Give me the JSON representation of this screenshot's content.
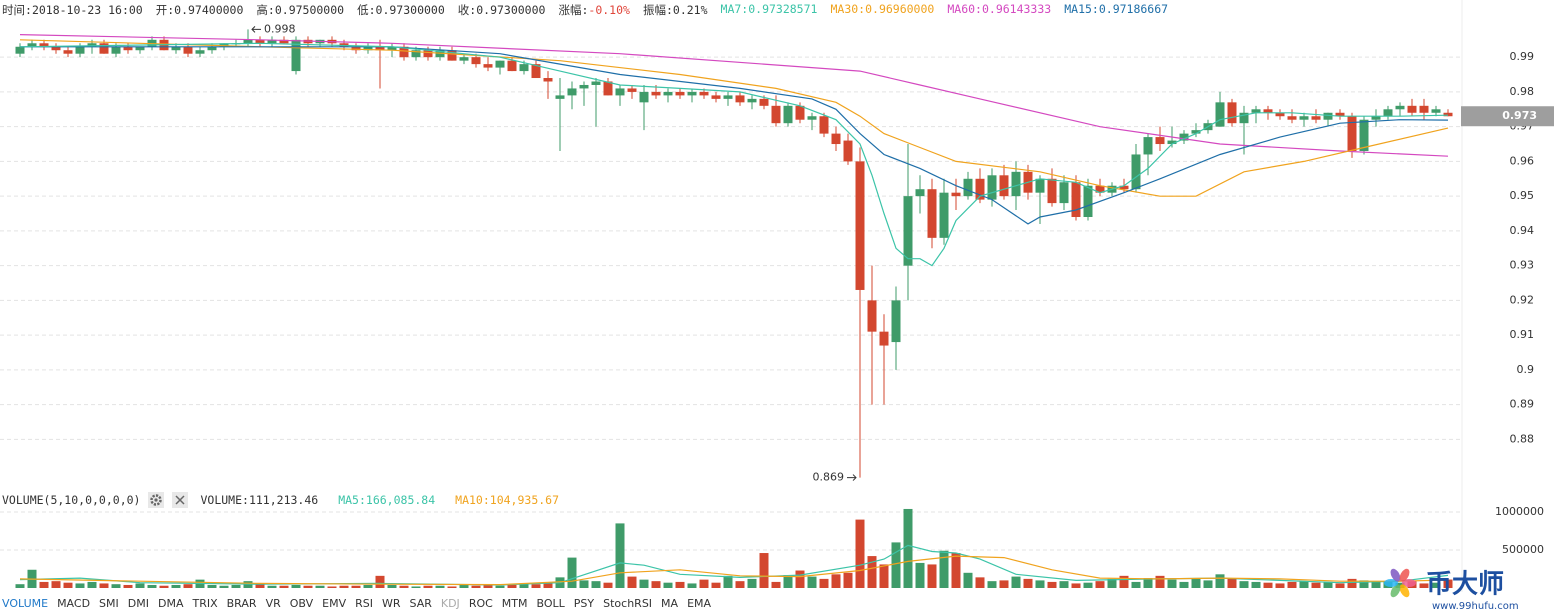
{
  "header": {
    "items": [
      {
        "label": "时间:",
        "value": "2018-10-23 16:00"
      },
      {
        "label": "开:",
        "value": "0.97400000"
      },
      {
        "label": "高:",
        "value": "0.97500000"
      },
      {
        "label": "低:",
        "value": "0.97300000"
      },
      {
        "label": "收:",
        "value": "0.97300000"
      },
      {
        "label": "涨幅:",
        "value": "-0.10%",
        "value_color": "#e0453a"
      },
      {
        "label": "振幅:",
        "value": "0.21%"
      },
      {
        "label": "MA7:",
        "value": "0.97328571",
        "color": "#3cc4a8"
      },
      {
        "label": "MA30:",
        "value": "0.96960000",
        "color": "#f0a31e"
      },
      {
        "label": "MA60:",
        "value": "0.96143333",
        "color": "#d449c0"
      },
      {
        "label": "MA15:",
        "value": "0.97186667",
        "color": "#1f6fa8"
      }
    ]
  },
  "chart_data": [
    {
      "type": "candlestick",
      "up_color": "#3f9b69",
      "down_color": "#d3472f",
      "open": [
        0.991,
        0.993,
        0.994,
        0.993,
        0.992,
        0.991,
        0.993,
        0.994,
        0.991,
        0.993,
        0.992,
        0.993,
        0.995,
        0.992,
        0.993,
        0.991,
        0.992,
        0.993,
        0.994,
        0.994,
        0.995,
        0.994,
        0.995,
        0.986,
        0.995,
        0.994,
        0.995,
        0.994,
        0.993,
        0.992,
        0.993,
        0.992,
        0.993,
        0.99,
        0.992,
        0.99,
        0.992,
        0.989,
        0.99,
        0.988,
        0.987,
        0.989,
        0.986,
        0.988,
        0.984,
        0.978,
        0.979,
        0.981,
        0.982,
        0.983,
        0.979,
        0.981,
        0.977,
        0.98,
        0.979,
        0.98,
        0.979,
        0.98,
        0.979,
        0.978,
        0.979,
        0.977,
        0.978,
        0.976,
        0.971,
        0.976,
        0.972,
        0.973,
        0.968,
        0.966,
        0.96,
        0.92,
        0.911,
        0.908,
        0.93,
        0.95,
        0.952,
        0.938,
        0.951,
        0.95,
        0.955,
        0.949,
        0.956,
        0.95,
        0.957,
        0.951,
        0.955,
        0.948,
        0.954,
        0.944,
        0.953,
        0.951,
        0.953,
        0.952,
        0.962,
        0.967,
        0.965,
        0.966,
        0.968,
        0.969,
        0.97,
        0.977,
        0.971,
        0.974,
        0.975,
        0.974,
        0.973,
        0.972,
        0.973,
        0.972,
        0.974,
        0.973,
        0.963,
        0.972,
        0.973,
        0.975,
        0.976,
        0.976,
        0.974,
        0.974
      ],
      "high": [
        0.994,
        0.995,
        0.995,
        0.994,
        0.993,
        0.994,
        0.995,
        0.995,
        0.994,
        0.994,
        0.993,
        0.996,
        0.996,
        0.994,
        0.994,
        0.993,
        0.994,
        0.994,
        0.995,
        0.998,
        0.996,
        0.996,
        0.996,
        0.996,
        0.996,
        0.995,
        0.996,
        0.995,
        0.994,
        0.994,
        0.995,
        0.994,
        0.994,
        0.993,
        0.993,
        0.993,
        0.993,
        0.991,
        0.991,
        0.99,
        0.989,
        0.99,
        0.989,
        0.989,
        0.986,
        0.984,
        0.983,
        0.983,
        0.984,
        0.984,
        0.982,
        0.982,
        0.982,
        0.982,
        0.981,
        0.981,
        0.981,
        0.981,
        0.98,
        0.98,
        0.98,
        0.979,
        0.979,
        0.979,
        0.977,
        0.977,
        0.974,
        0.974,
        0.97,
        0.968,
        0.964,
        0.93,
        0.916,
        0.924,
        0.965,
        0.956,
        0.955,
        0.955,
        0.955,
        0.957,
        0.958,
        0.958,
        0.959,
        0.96,
        0.959,
        0.956,
        0.958,
        0.956,
        0.956,
        0.955,
        0.955,
        0.954,
        0.955,
        0.965,
        0.968,
        0.97,
        0.97,
        0.969,
        0.971,
        0.972,
        0.98,
        0.978,
        0.976,
        0.976,
        0.976,
        0.975,
        0.975,
        0.974,
        0.975,
        0.974,
        0.975,
        0.974,
        0.973,
        0.975,
        0.976,
        0.977,
        0.978,
        0.978,
        0.976,
        0.975
      ],
      "low": [
        0.99,
        0.992,
        0.992,
        0.991,
        0.99,
        0.99,
        0.991,
        0.991,
        0.99,
        0.991,
        0.991,
        0.992,
        0.992,
        0.991,
        0.99,
        0.99,
        0.991,
        0.992,
        0.993,
        0.993,
        0.993,
        0.993,
        0.994,
        0.985,
        0.993,
        0.993,
        0.993,
        0.992,
        0.991,
        0.991,
        0.981,
        0.99,
        0.989,
        0.989,
        0.989,
        0.989,
        0.989,
        0.988,
        0.987,
        0.986,
        0.985,
        0.986,
        0.985,
        0.984,
        0.978,
        0.963,
        0.975,
        0.976,
        0.97,
        0.979,
        0.976,
        0.978,
        0.969,
        0.978,
        0.977,
        0.978,
        0.977,
        0.978,
        0.977,
        0.976,
        0.976,
        0.975,
        0.975,
        0.97,
        0.97,
        0.971,
        0.969,
        0.967,
        0.963,
        0.959,
        0.869,
        0.89,
        0.89,
        0.9,
        0.92,
        0.945,
        0.935,
        0.936,
        0.946,
        0.949,
        0.948,
        0.947,
        0.949,
        0.946,
        0.949,
        0.942,
        0.947,
        0.946,
        0.943,
        0.943,
        0.95,
        0.95,
        0.951,
        0.951,
        0.956,
        0.963,
        0.964,
        0.965,
        0.967,
        0.968,
        0.97,
        0.97,
        0.962,
        0.971,
        0.972,
        0.972,
        0.971,
        0.97,
        0.971,
        0.97,
        0.972,
        0.961,
        0.962,
        0.97,
        0.972,
        0.973,
        0.973,
        0.972,
        0.973,
        0.973
      ],
      "close": [
        0.993,
        0.994,
        0.993,
        0.992,
        0.991,
        0.993,
        0.994,
        0.991,
        0.993,
        0.992,
        0.993,
        0.995,
        0.992,
        0.993,
        0.991,
        0.992,
        0.993,
        0.994,
        0.994,
        0.995,
        0.994,
        0.995,
        0.994,
        0.995,
        0.994,
        0.995,
        0.994,
        0.993,
        0.992,
        0.993,
        0.992,
        0.993,
        0.99,
        0.992,
        0.99,
        0.992,
        0.989,
        0.99,
        0.988,
        0.987,
        0.989,
        0.986,
        0.988,
        0.984,
        0.983,
        0.979,
        0.981,
        0.982,
        0.983,
        0.979,
        0.981,
        0.98,
        0.98,
        0.979,
        0.98,
        0.979,
        0.98,
        0.979,
        0.978,
        0.979,
        0.977,
        0.978,
        0.976,
        0.971,
        0.976,
        0.972,
        0.973,
        0.968,
        0.965,
        0.96,
        0.923,
        0.911,
        0.907,
        0.92,
        0.95,
        0.952,
        0.938,
        0.951,
        0.95,
        0.955,
        0.949,
        0.956,
        0.95,
        0.957,
        0.951,
        0.955,
        0.948,
        0.954,
        0.944,
        0.953,
        0.951,
        0.953,
        0.952,
        0.962,
        0.967,
        0.965,
        0.966,
        0.968,
        0.969,
        0.971,
        0.977,
        0.971,
        0.974,
        0.975,
        0.974,
        0.973,
        0.972,
        0.973,
        0.972,
        0.974,
        0.973,
        0.963,
        0.972,
        0.973,
        0.975,
        0.976,
        0.974,
        0.974,
        0.975,
        0.973
      ],
      "lines": [
        {
          "color": "#d449c0",
          "x": [
            0,
            20,
            31,
            50,
            70,
            75,
            80,
            90,
            100,
            110,
            119
          ],
          "values": [
            0.9965,
            0.995,
            0.994,
            0.991,
            0.986,
            0.982,
            0.978,
            0.97,
            0.965,
            0.963,
            0.9615
          ]
        },
        {
          "color": "#f0a31e",
          "x": [
            0,
            20,
            31,
            45,
            55,
            63,
            68,
            70,
            72,
            75,
            78,
            85,
            90,
            95,
            98,
            102,
            107,
            112,
            119
          ],
          "values": [
            0.995,
            0.993,
            0.992,
            0.989,
            0.985,
            0.981,
            0.977,
            0.973,
            0.968,
            0.964,
            0.96,
            0.957,
            0.953,
            0.95,
            0.95,
            0.957,
            0.96,
            0.964,
            0.9696
          ]
        },
        {
          "color": "#1f6fa8",
          "x": [
            0,
            20,
            31,
            40,
            45,
            50,
            60,
            66,
            68,
            70,
            72,
            75,
            78,
            81,
            84,
            85,
            88,
            92,
            95,
            100,
            105,
            110,
            115,
            119
          ],
          "values": [
            0.993,
            0.993,
            0.993,
            0.991,
            0.988,
            0.985,
            0.981,
            0.978,
            0.975,
            0.968,
            0.962,
            0.958,
            0.953,
            0.949,
            0.942,
            0.944,
            0.946,
            0.951,
            0.955,
            0.962,
            0.967,
            0.971,
            0.972,
            0.9719
          ]
        },
        {
          "color": "#3cc4a8",
          "x": [
            0,
            20,
            31,
            40,
            45,
            50,
            55,
            60,
            65,
            68,
            70,
            71,
            72,
            73,
            74,
            75,
            76,
            77,
            78,
            80,
            83,
            85,
            88,
            90,
            92,
            94,
            96,
            98,
            100,
            103,
            106,
            110,
            115,
            119
          ],
          "values": [
            0.993,
            0.994,
            0.993,
            0.99,
            0.986,
            0.982,
            0.981,
            0.98,
            0.976,
            0.972,
            0.965,
            0.956,
            0.945,
            0.935,
            0.932,
            0.932,
            0.93,
            0.935,
            0.943,
            0.95,
            0.953,
            0.955,
            0.954,
            0.951,
            0.953,
            0.958,
            0.965,
            0.968,
            0.972,
            0.974,
            0.974,
            0.973,
            0.973,
            0.9733
          ]
        }
      ],
      "ylim": [
        0.866,
        1.0007
      ],
      "yticks": [
        0.99,
        0.98,
        0.97,
        0.96,
        0.95,
        0.94,
        0.93,
        0.92,
        0.91,
        0.9,
        0.89,
        0.88
      ],
      "grid": true,
      "annotations": [
        0.998,
        0.869
      ],
      "last_price": 0.973
    },
    {
      "type": "bar",
      "values": [
        50000,
        240000,
        80000,
        90000,
        70000,
        60000,
        80000,
        60000,
        50000,
        40000,
        60000,
        40000,
        30000,
        40000,
        50000,
        110000,
        40000,
        30000,
        40000,
        90000,
        50000,
        30000,
        30000,
        40000,
        30000,
        30000,
        20000,
        30000,
        30000,
        40000,
        160000,
        40000,
        30000,
        20000,
        30000,
        30000,
        20000,
        50000,
        30000,
        40000,
        30000,
        40000,
        60000,
        50000,
        60000,
        140000,
        400000,
        100000,
        90000,
        70000,
        850000,
        150000,
        110000,
        90000,
        70000,
        80000,
        60000,
        110000,
        70000,
        160000,
        90000,
        120000,
        460000,
        80000,
        170000,
        230000,
        150000,
        120000,
        180000,
        200000,
        900000,
        420000,
        310000,
        600000,
        1040000,
        330000,
        310000,
        490000,
        460000,
        200000,
        140000,
        90000,
        100000,
        150000,
        120000,
        100000,
        80000,
        90000,
        60000,
        70000,
        90000,
        120000,
        160000,
        80000,
        130000,
        160000,
        110000,
        80000,
        130000,
        100000,
        180000,
        120000,
        90000,
        80000,
        70000,
        60000,
        80000,
        90000,
        70000,
        80000,
        60000,
        120000,
        100000,
        90000,
        80000,
        70000,
        90000,
        60000,
        70000,
        111213.46
      ],
      "lines": [
        {
          "color": "#3cc4a8",
          "x": [
            0,
            5,
            10,
            20,
            30,
            40,
            45,
            50,
            52,
            55,
            60,
            65,
            70,
            72,
            74,
            76,
            78,
            80,
            83,
            88,
            95,
            100,
            105,
            110,
            115,
            119
          ],
          "values": [
            110000,
            130000,
            70000,
            50000,
            60000,
            40000,
            70000,
            330000,
            300000,
            180000,
            140000,
            170000,
            300000,
            380000,
            560000,
            480000,
            460000,
            380000,
            180000,
            100000,
            120000,
            130000,
            100000,
            70000,
            90000,
            166085.84
          ]
        },
        {
          "color": "#f0a31e",
          "x": [
            0,
            10,
            20,
            30,
            40,
            46,
            50,
            55,
            60,
            65,
            70,
            74,
            78,
            82,
            86,
            90,
            95,
            100,
            105,
            110,
            115,
            119
          ],
          "values": [
            120000,
            90000,
            60000,
            50000,
            45000,
            90000,
            200000,
            240000,
            160000,
            150000,
            230000,
            350000,
            420000,
            400000,
            240000,
            130000,
            120000,
            130000,
            120000,
            90000,
            90000,
            104935.67
          ]
        }
      ],
      "ylim": [
        0,
        1000000
      ],
      "yticks": [
        500000,
        1000000
      ],
      "grid": true
    }
  ],
  "volume_header": {
    "title": "VOLUME(5,10,0,0,0,0)",
    "items": [
      {
        "label": "VOLUME:",
        "value": "111,213.46"
      },
      {
        "label": "MA5:",
        "value": "166,085.84",
        "color": "#3cc4a8"
      },
      {
        "label": "MA10:",
        "value": "104,935.67",
        "color": "#f0a31e"
      }
    ]
  },
  "tabs": {
    "items": [
      "VOLUME",
      "MACD",
      "SMI",
      "DMI",
      "DMA",
      "TRIX",
      "BRAR",
      "VR",
      "OBV",
      "EMV",
      "RSI",
      "WR",
      "SAR",
      "KDJ",
      "ROC",
      "MTM",
      "BOLL",
      "PSY",
      "StochRSI",
      "MA",
      "EMA"
    ],
    "active": 0,
    "disabled": [
      13
    ]
  },
  "watermark": {
    "brand": "币大师",
    "url": "www.99hufu.com"
  }
}
